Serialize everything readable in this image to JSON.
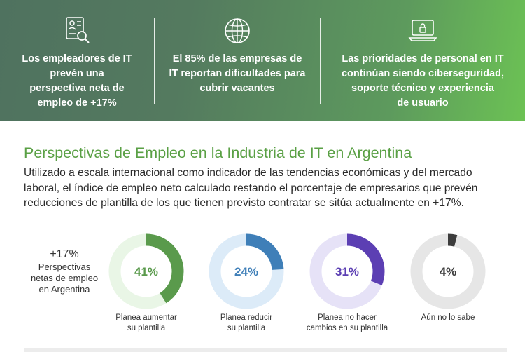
{
  "banner": {
    "stats": [
      {
        "icon": "job-search-icon",
        "text_lines": [
          "Los empleadores de IT",
          "prevén una",
          "perspectiva neta de",
          "empleo de +17%"
        ]
      },
      {
        "icon": "globe-icon",
        "text_lines": [
          "El 85% de las empresas de",
          "IT reportan dificultades para",
          "cubrir vacantes"
        ]
      },
      {
        "icon": "laptop-lock-icon",
        "text_lines": [
          "Las prioridades de personal en IT",
          "continúan siendo ciberseguridad,",
          "soporte técnico y experiencia",
          "de usuario"
        ]
      }
    ]
  },
  "section": {
    "title": "Perspectivas de Empleo en la Industria de IT en Argentina",
    "intro": "Utilizado a escala internacional como indicador de las tendencias económicas y del mercado laboral, el índice de empleo neto calculado restando el porcentaje de empresarios que prevén reducciones de plantilla de los que tienen previsto contratar se sitúa actualmente en +17%."
  },
  "summary": {
    "value": "+17%",
    "label_lines": [
      "Perspectivas",
      "netas de empleo",
      "en Argentina"
    ]
  },
  "chart_data": {
    "type": "pie",
    "variant": "donut",
    "categories": [
      "Planea aumentar su plantilla",
      "Planea reducir su plantilla",
      "Planea no hacer cambios en su plantilla",
      "Aún no lo sabe"
    ],
    "values": [
      41,
      24,
      31,
      4
    ],
    "items": [
      {
        "value": 41,
        "display": "41%",
        "label_lines": [
          "Planea aumentar",
          "su plantilla"
        ],
        "color": "#5a9a4c",
        "light": "#e9f6e6",
        "text_color": "#5a9a4c"
      },
      {
        "value": 24,
        "display": "24%",
        "label_lines": [
          "Planea reducir",
          "su plantilla"
        ],
        "color": "#3f7fb8",
        "light": "#dcebf8",
        "text_color": "#3f7fb8"
      },
      {
        "value": 31,
        "display": "31%",
        "label_lines": [
          "Planea no hacer",
          "cambios en su plantilla"
        ],
        "color": "#5c3fb3",
        "light": "#e6e2f7",
        "text_color": "#5c3fb3"
      },
      {
        "value": 4,
        "display": "4%",
        "label_lines": [
          "Aún no lo sabe"
        ],
        "color": "#3c3c3c",
        "light": "#e6e6e6",
        "text_color": "#3c3c3c"
      }
    ]
  }
}
